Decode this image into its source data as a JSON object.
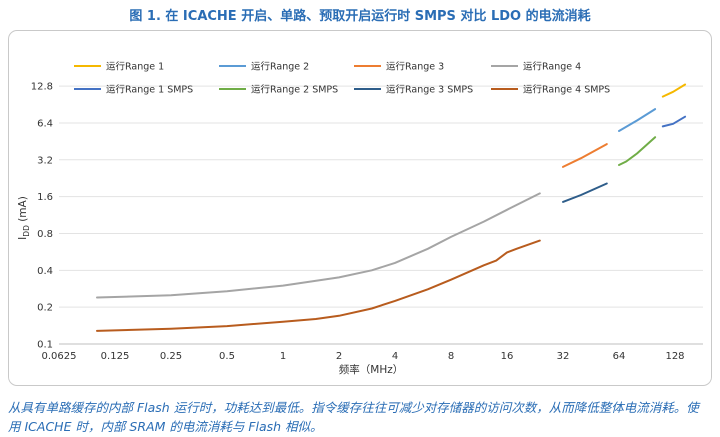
{
  "figure": {
    "title": "图 1. 在 ICACHE 开启、单路、预取开启运行时 SMPS 对比 LDO 的电流消耗",
    "caption": "从具有单路缓存的内部 Flash 运行时，功耗达到最低。指令缓存往往可减少对存储器的访问次数，从而降低整体电流消耗。使用 ICACHE 时，内部 SRAM 的电流消耗与 Flash 相似。"
  },
  "chart_data": {
    "type": "line",
    "title": "图 1. 在 ICACHE 开启、单路、预取开启运行时 SMPS 对比 LDO 的电流消耗",
    "xlabel": "频率（MHz）",
    "ylabel_main": "I",
    "ylabel_sub": "DD",
    "ylabel_unit": " (mA)",
    "xscale": "log2",
    "yscale": "log2",
    "xlim": [
      0.0625,
      181
    ],
    "ylim": [
      0.1,
      18
    ],
    "x_ticks": [
      0.0625,
      0.125,
      0.25,
      0.5,
      1,
      2,
      4,
      8,
      16,
      32,
      64,
      128
    ],
    "x_tick_labels": [
      "0.0625",
      "0.125",
      "0.25",
      "0.5",
      "1",
      "2",
      "4",
      "8",
      "16",
      "32",
      "64",
      "128"
    ],
    "y_ticks": [
      0.1,
      0.2,
      0.4,
      0.8,
      1.6,
      3.2,
      6.4,
      12.8
    ],
    "y_tick_labels": [
      "0.1",
      "0.2",
      "0.4",
      "0.8",
      "1.6",
      "3.2",
      "6.4",
      "12.8"
    ],
    "grid": "horizontal",
    "legend_position": "top",
    "series": [
      {
        "name": "运行Range 1",
        "color": "#f5b800",
        "points": [
          [
            110,
            10.5
          ],
          [
            125,
            11.5
          ],
          [
            145,
            13.2
          ]
        ]
      },
      {
        "name": "运行Range 2",
        "color": "#5b9bd5",
        "points": [
          [
            64,
            5.5
          ],
          [
            80,
            6.7
          ],
          [
            100,
            8.3
          ]
        ]
      },
      {
        "name": "运行Range 3",
        "color": "#ed7d31",
        "points": [
          [
            32,
            2.8
          ],
          [
            40,
            3.3
          ],
          [
            55,
            4.3
          ]
        ]
      },
      {
        "name": "运行Range 4",
        "color": "#a5a5a5",
        "points": [
          [
            0.1,
            0.24
          ],
          [
            0.25,
            0.25
          ],
          [
            0.5,
            0.27
          ],
          [
            1,
            0.3
          ],
          [
            2,
            0.35
          ],
          [
            3,
            0.4
          ],
          [
            4,
            0.46
          ],
          [
            6,
            0.6
          ],
          [
            8,
            0.75
          ],
          [
            12,
            1.0
          ],
          [
            16,
            1.25
          ],
          [
            24,
            1.7
          ]
        ]
      },
      {
        "name": "运行Range 1 SMPS",
        "color": "#4472c4",
        "points": [
          [
            110,
            6.0
          ],
          [
            125,
            6.3
          ],
          [
            145,
            7.2
          ]
        ]
      },
      {
        "name": "运行Range 2 SMPS",
        "color": "#70ad47",
        "points": [
          [
            64,
            2.9
          ],
          [
            70,
            3.1
          ],
          [
            80,
            3.6
          ],
          [
            100,
            4.9
          ]
        ]
      },
      {
        "name": "运行Range 3 SMPS",
        "color": "#2e5d8a",
        "points": [
          [
            32,
            1.45
          ],
          [
            40,
            1.65
          ],
          [
            55,
            2.05
          ]
        ]
      },
      {
        "name": "运行Range 4 SMPS",
        "color": "#b85c1e",
        "points": [
          [
            0.1,
            0.128
          ],
          [
            0.25,
            0.133
          ],
          [
            0.5,
            0.14
          ],
          [
            1,
            0.152
          ],
          [
            1.5,
            0.16
          ],
          [
            2,
            0.17
          ],
          [
            3,
            0.195
          ],
          [
            4,
            0.225
          ],
          [
            6,
            0.28
          ],
          [
            8,
            0.335
          ],
          [
            12,
            0.44
          ],
          [
            14,
            0.48
          ],
          [
            16,
            0.56
          ],
          [
            18,
            0.6
          ],
          [
            24,
            0.7
          ]
        ]
      }
    ]
  }
}
